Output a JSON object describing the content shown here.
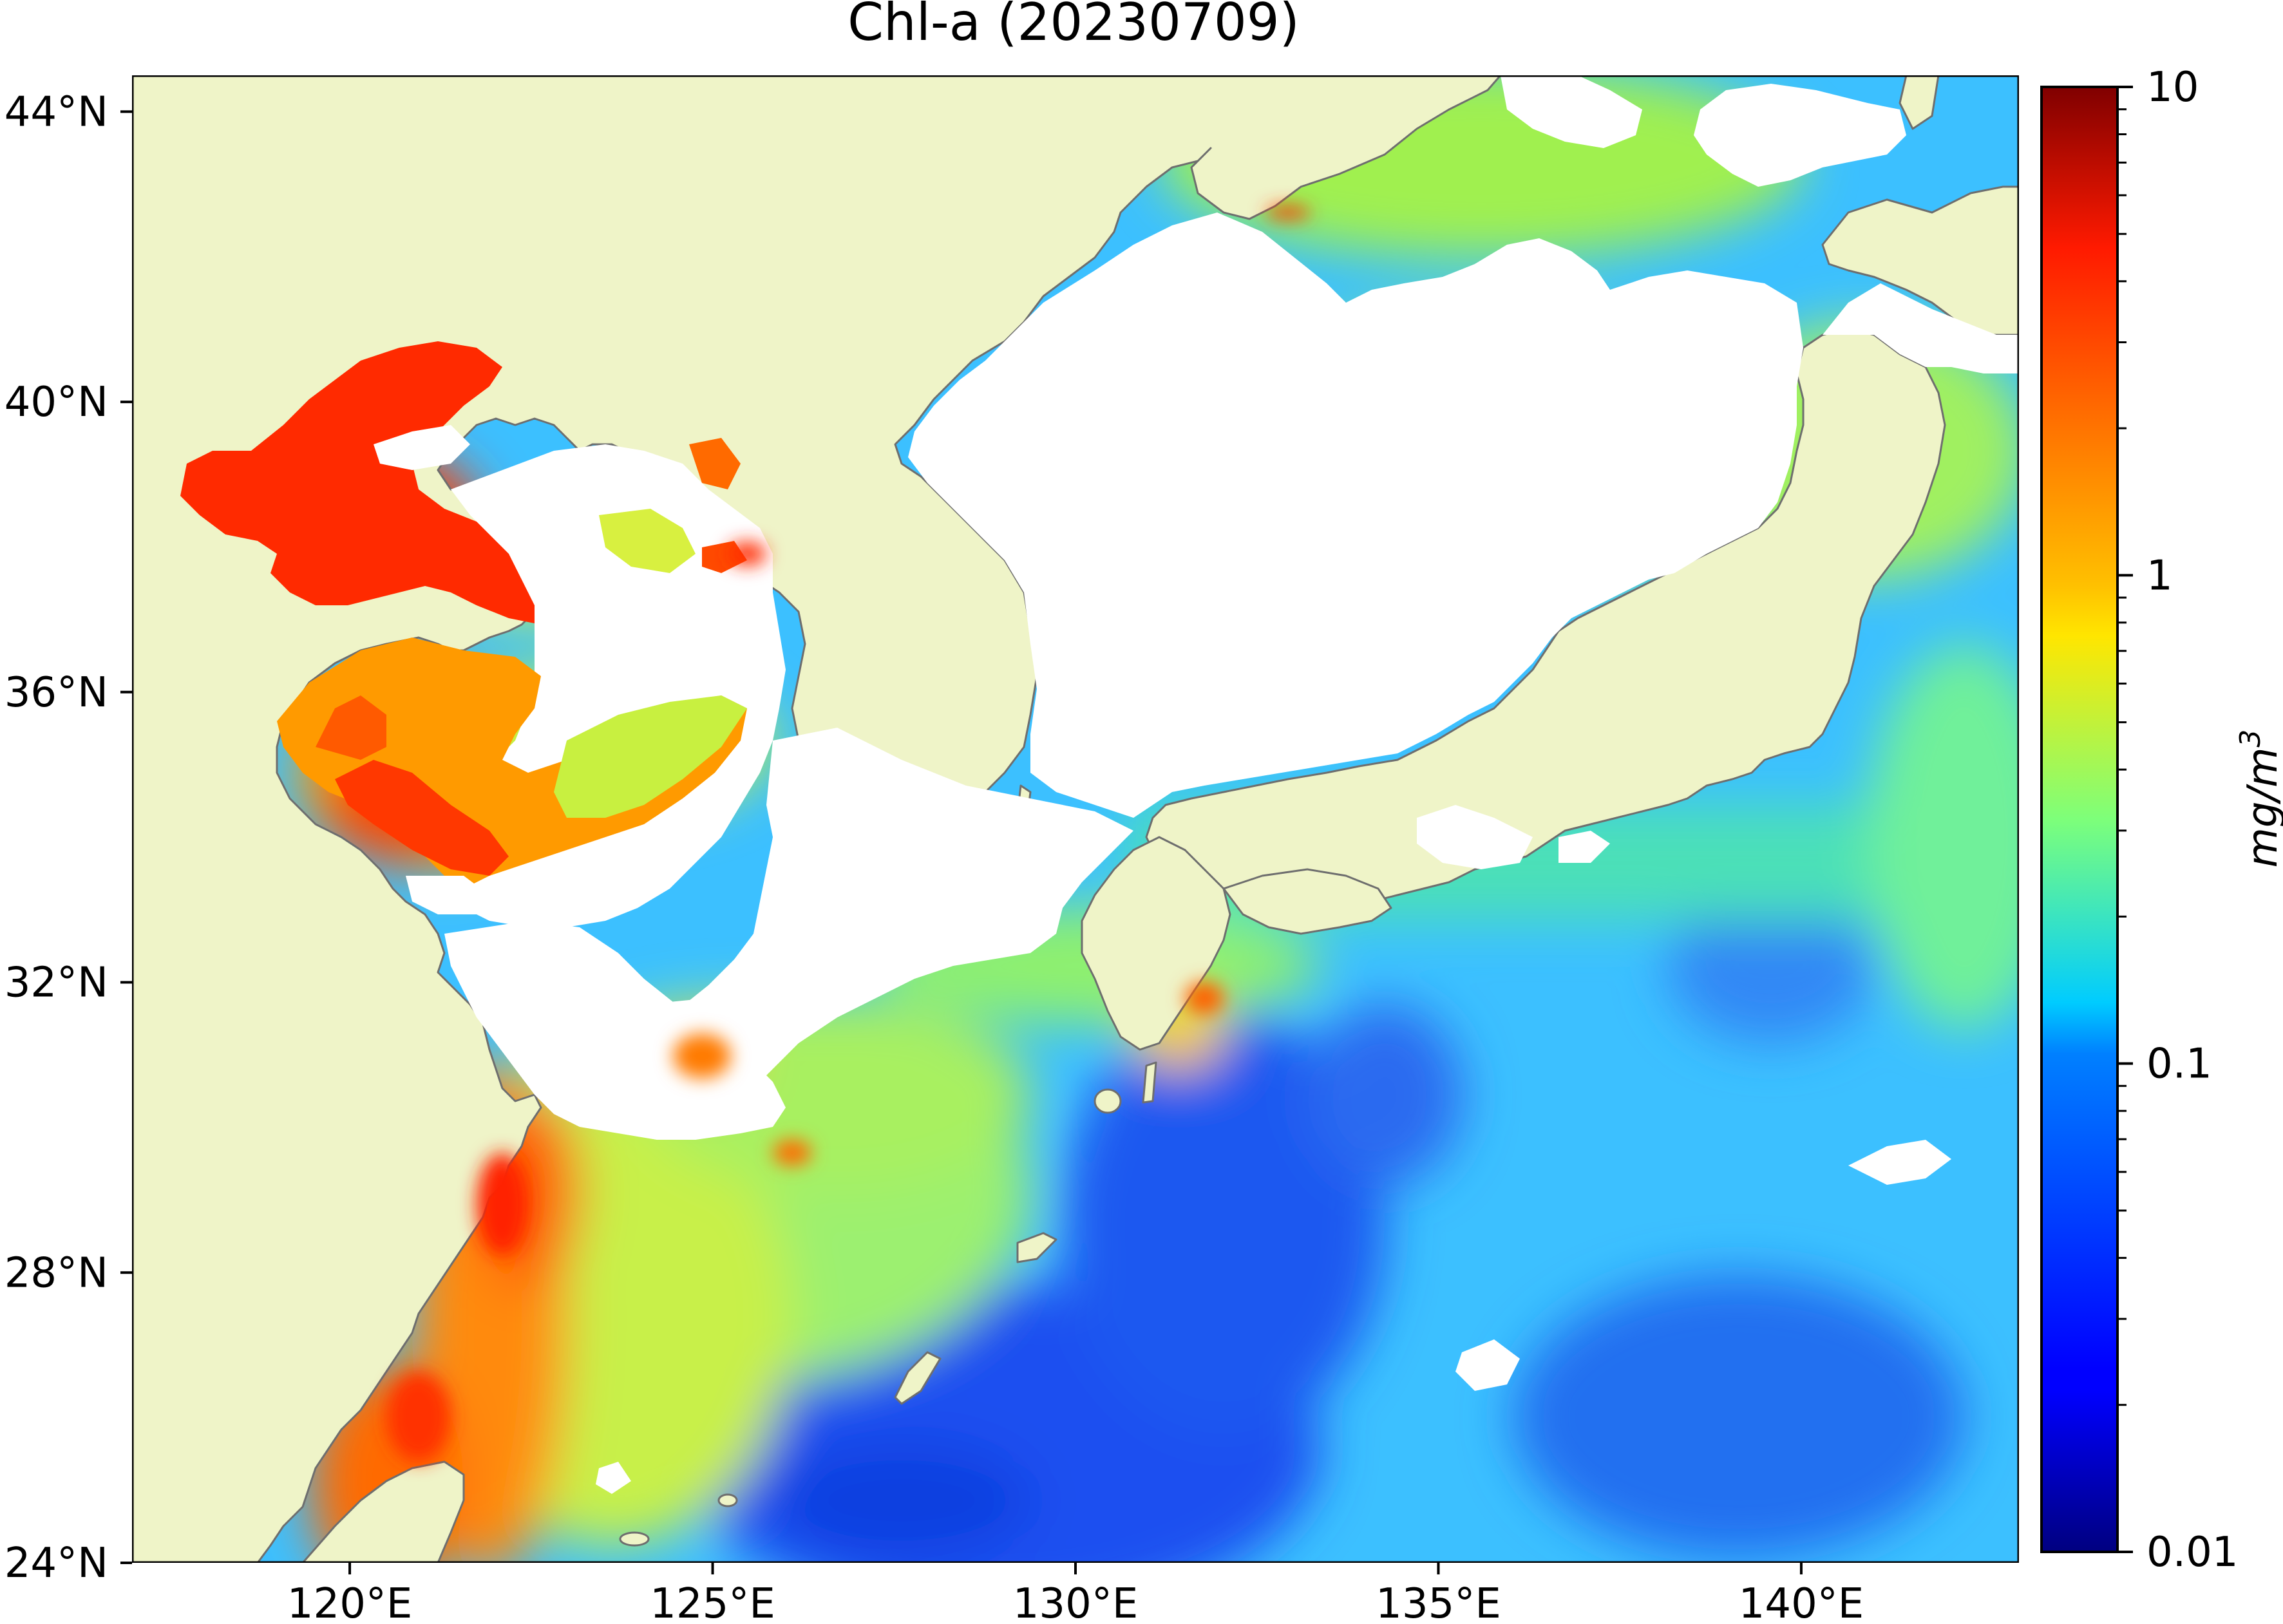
{
  "title": "Chl-a (20230709)",
  "map": {
    "region": "East China Sea / Yellow Sea / Sea of Japan / NW Pacific",
    "lon_range": [
      117,
      143
    ],
    "lat_range": [
      24,
      44.5
    ],
    "lon_ticks": [
      {
        "value": 120,
        "label": "120°E"
      },
      {
        "value": 125,
        "label": "125°E"
      },
      {
        "value": 130,
        "label": "130°E"
      },
      {
        "value": 135,
        "label": "135°E"
      },
      {
        "value": 140,
        "label": "140°E"
      }
    ],
    "lat_ticks": [
      {
        "value": 24,
        "label": "24°N"
      },
      {
        "value": 28,
        "label": "28°N"
      },
      {
        "value": 32,
        "label": "32°N"
      },
      {
        "value": 36,
        "label": "36°N"
      },
      {
        "value": 40,
        "label": "40°N"
      },
      {
        "value": 44,
        "label": "44°N"
      }
    ],
    "land_color": "#eff4c8",
    "nodata_color": "#ffffff",
    "coast_color": "#6e6e6e"
  },
  "colorbar": {
    "label": "mg/m3",
    "label_base": "mg/m",
    "label_exp": "3",
    "scale": "log",
    "range": [
      0.01,
      10
    ],
    "colormap": "jet",
    "ticks": [
      {
        "value": 0.01,
        "label": "0.01"
      },
      {
        "value": 0.1,
        "label": "0.1"
      },
      {
        "value": 1,
        "label": "1"
      },
      {
        "value": 10,
        "label": "10"
      }
    ]
  }
}
